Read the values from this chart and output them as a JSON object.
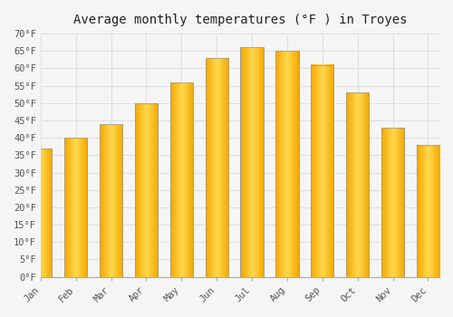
{
  "title": "Average monthly temperatures (°F ) in Troyes",
  "months": [
    "Jan",
    "Feb",
    "Mar",
    "Apr",
    "May",
    "Jun",
    "Jul",
    "Aug",
    "Sep",
    "Oct",
    "Nov",
    "Dec"
  ],
  "values": [
    37,
    40,
    44,
    50,
    56,
    63,
    66,
    65,
    61,
    53,
    43,
    38
  ],
  "bar_color_outer": "#F5A800",
  "bar_color_inner": "#FFD84D",
  "bar_edge_color": "#999999",
  "background_color": "#f5f5f5",
  "plot_bg_color": "#f0f0f0",
  "grid_color": "#e0e0e0",
  "ylim": [
    0,
    70
  ],
  "yticks": [
    0,
    5,
    10,
    15,
    20,
    25,
    30,
    35,
    40,
    45,
    50,
    55,
    60,
    65,
    70
  ],
  "title_fontsize": 10,
  "tick_fontsize": 7.5
}
